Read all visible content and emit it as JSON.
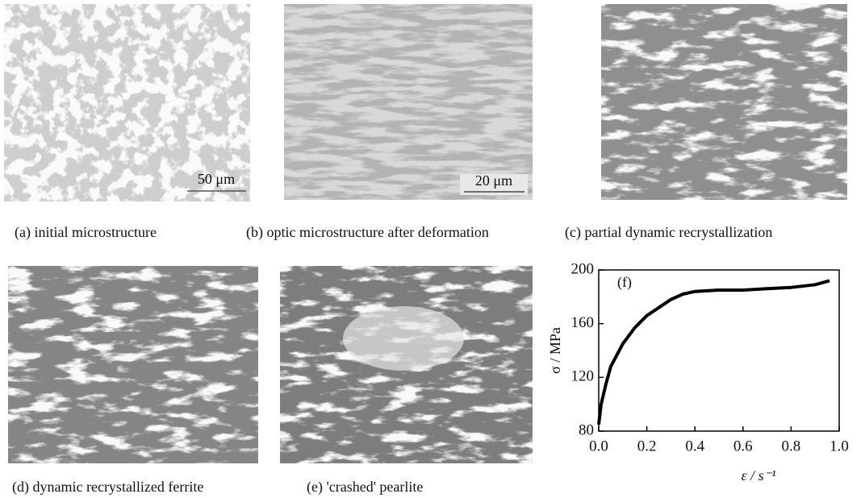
{
  "panels": [
    {
      "caption": "(a) initial microstructure",
      "scale_bar": "50 μm"
    },
    {
      "caption": "(b) optic microstructure after deformation",
      "scale_bar": "20 μm"
    },
    {
      "caption": "(c) partial dynamic recrystallization"
    },
    {
      "caption": "(d) dynamic recrystallized ferrite"
    },
    {
      "caption": "(e) 'crashed' pearlite"
    }
  ],
  "chart_data": {
    "type": "line",
    "annotation": "(f)",
    "xlabel": "ε / s⁻¹",
    "ylabel": "σ / MPa",
    "x": [
      0.0,
      0.01,
      0.03,
      0.05,
      0.1,
      0.15,
      0.2,
      0.25,
      0.3,
      0.35,
      0.4,
      0.5,
      0.6,
      0.7,
      0.8,
      0.9,
      0.96
    ],
    "series": [
      {
        "color": "#000000",
        "values": [
          85,
          100,
          115,
          128,
          145,
          157,
          166,
          172,
          178,
          182,
          184,
          185,
          185,
          186,
          187,
          189,
          192
        ]
      }
    ],
    "xlim": [
      0,
      1.0
    ],
    "ylim": [
      80,
      200
    ],
    "xticks": [
      {
        "value": 0,
        "label": "0.0"
      },
      0.2,
      0.4,
      0.6,
      0.8,
      {
        "value": 1,
        "label": "1.0"
      }
    ],
    "yticks": [
      80,
      120,
      160,
      200
    ]
  }
}
